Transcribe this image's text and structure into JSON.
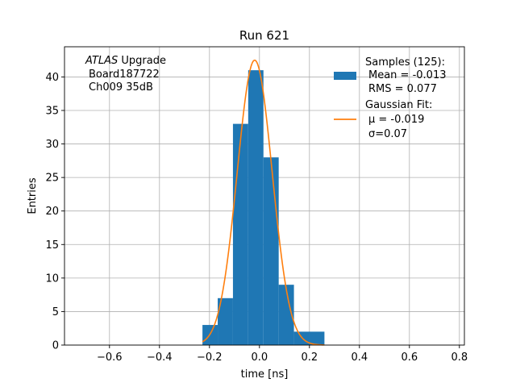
{
  "chart_data": {
    "type": "bar",
    "title": "Run 621",
    "xlabel": "time [ns]",
    "ylabel": "Entries",
    "xlim": [
      -0.78,
      0.82
    ],
    "ylim": [
      0,
      44.5
    ],
    "xticks": [
      -0.6,
      -0.4,
      -0.2,
      0.0,
      0.2,
      0.4,
      0.6,
      0.8
    ],
    "xtick_labels": [
      "−0.6",
      "−0.4",
      "−0.2",
      "0.0",
      "0.2",
      "0.4",
      "0.6",
      "0.8"
    ],
    "yticks": [
      0,
      5,
      10,
      15,
      20,
      25,
      30,
      35,
      40
    ],
    "ytick_labels": [
      "0",
      "5",
      "10",
      "15",
      "20",
      "25",
      "30",
      "35",
      "40"
    ],
    "grid": true,
    "legend_position": "top-right",
    "annotation": {
      "line1_italic": "ATLAS",
      "line1_rest": " Upgrade",
      "line2": "Board187722",
      "line3": "Ch009 35dB"
    },
    "histogram": {
      "name": "Samples (125):",
      "legend_lines": [
        "Samples (125):",
        "Mean = -0.013",
        "RMS = 0.077"
      ],
      "color": "#1f77b4",
      "bin_edges": [
        -0.228,
        -0.167,
        -0.106,
        -0.045,
        0.016,
        0.077,
        0.138,
        0.199,
        0.26
      ],
      "counts": [
        3,
        7,
        33,
        41,
        28,
        9,
        2,
        2
      ]
    },
    "fit": {
      "name": "Gaussian Fit:",
      "legend_lines": [
        "Gaussian Fit:",
        "μ = -0.019",
        "σ=0.07"
      ],
      "color": "#ff7f0e",
      "mu": -0.019,
      "sigma": 0.07,
      "amplitude": 42.5,
      "x_range": [
        -0.228,
        0.26
      ]
    },
    "colors": {
      "grid": "#b0b0b0",
      "axes": "#000000"
    }
  }
}
